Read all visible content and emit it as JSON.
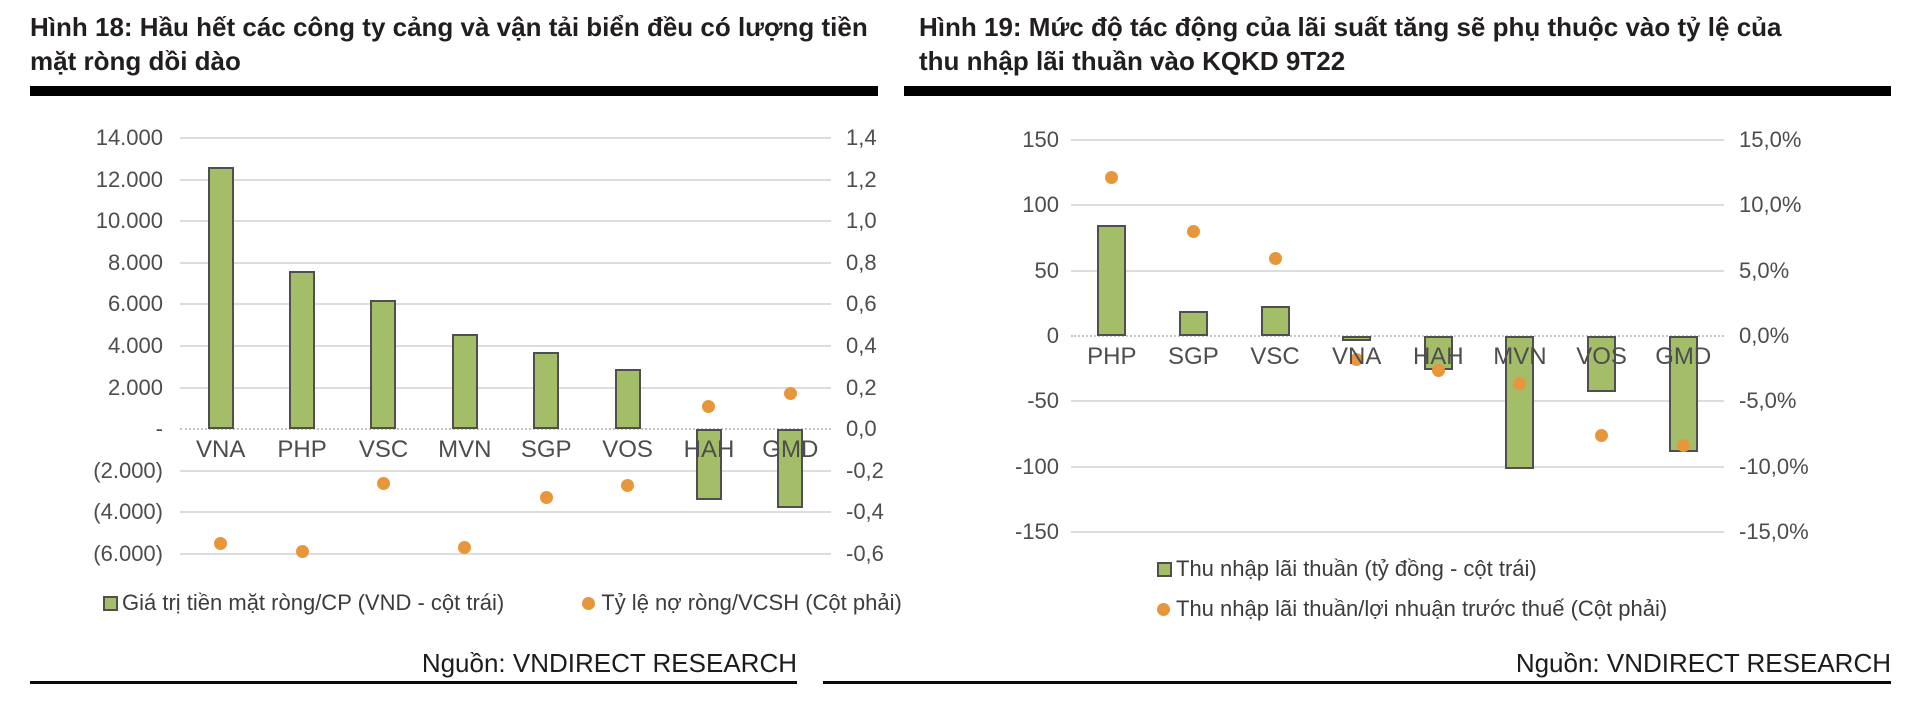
{
  "colors": {
    "bar_fill": "#A3BD69",
    "bar_border": "#4F4F4F",
    "dot_fill": "#E8963C",
    "gridline": "#DDDDDD",
    "zero_line": "#C4C4C4",
    "axis_text": "#4D4D4D",
    "title_text": "#221E1F",
    "rule": "#000000"
  },
  "chart_data": [
    {
      "type": "bar",
      "title": "Hình 18: Hầu hết các công ty cảng và vận tải biển đều có lượng tiền mặt ròng dồi dào",
      "title_lines": [
        "Hình 18: Hầu hết các công ty cảng và vận tải biển đều có lượng tiền",
        "mặt ròng dồi dào"
      ],
      "categories": [
        "VNA",
        "PHP",
        "VSC",
        "MVN",
        "SGP",
        "VOS",
        "HAH",
        "GMD"
      ],
      "series": [
        {
          "name": "Giá trị tiền mặt ròng/CP (VND - cột trái)",
          "type": "bar",
          "axis": "left",
          "values": [
            12600,
            7600,
            6200,
            4600,
            3700,
            2900,
            -3400,
            -3800
          ]
        },
        {
          "name": "Tỷ lệ nợ ròng/VCSH (Cột phải)",
          "type": "scatter",
          "axis": "right",
          "values": [
            -0.55,
            -0.59,
            -0.26,
            -0.57,
            -0.33,
            -0.27,
            0.11,
            0.17
          ]
        }
      ],
      "left_axis": {
        "min": -6000,
        "max": 14000,
        "tick_labels": [
          "14.000",
          "12.000",
          "10.000",
          "8.000",
          "6.000",
          "4.000",
          "2.000",
          "-",
          "(2.000)",
          "(4.000)",
          "(6.000)"
        ]
      },
      "right_axis": {
        "min": -0.6,
        "max": 1.4,
        "tick_labels": [
          "1,4",
          "1,2",
          "1,0",
          "0,8",
          "0,6",
          "0,4",
          "0,2",
          "0,0",
          "-0,2",
          "-0,4",
          "-0,6"
        ]
      },
      "grid": true,
      "legend_position": "bottom",
      "source": "Nguồn: VNDIRECT RESEARCH"
    },
    {
      "type": "bar",
      "title": "Hình 19: Mức độ tác động của lãi suất tăng sẽ phụ thuộc vào tỷ lệ của thu nhập lãi thuần vào KQKD 9T22",
      "title_lines": [
        "Hình 19: Mức độ tác động của lãi suất tăng sẽ phụ thuộc vào tỷ lệ của",
        "thu nhập lãi thuần vào KQKD 9T22"
      ],
      "categories": [
        "PHP",
        "SGP",
        "VSC",
        "VNA",
        "HAH",
        "MVN",
        "VOS",
        "GMD"
      ],
      "series": [
        {
          "name": "Thu nhập lãi thuần (tỷ đồng - cột trái)",
          "type": "bar",
          "axis": "left",
          "values": [
            85,
            19,
            23,
            -4,
            -26,
            -102,
            -43,
            -89
          ]
        },
        {
          "name": "Thu nhập lãi thuần/lợi nhuận trước thuế (Cột phải)",
          "type": "scatter",
          "axis": "right",
          "values": [
            12.1,
            8.0,
            5.9,
            -1.8,
            -2.6,
            -3.6,
            -7.6,
            -8.4
          ]
        }
      ],
      "left_axis": {
        "min": -150,
        "max": 150,
        "tick_labels": [
          "150",
          "100",
          "50",
          "0",
          "-50",
          "-100",
          "-150"
        ]
      },
      "right_axis": {
        "min": -15,
        "max": 15,
        "tick_labels": [
          "15,0%",
          "10,0%",
          "5,0%",
          "0,0%",
          "-5,0%",
          "-10,0%",
          "-15,0%"
        ]
      },
      "grid": true,
      "legend_position": "bottom",
      "source": "Nguồn: VNDIRECT RESEARCH"
    }
  ]
}
